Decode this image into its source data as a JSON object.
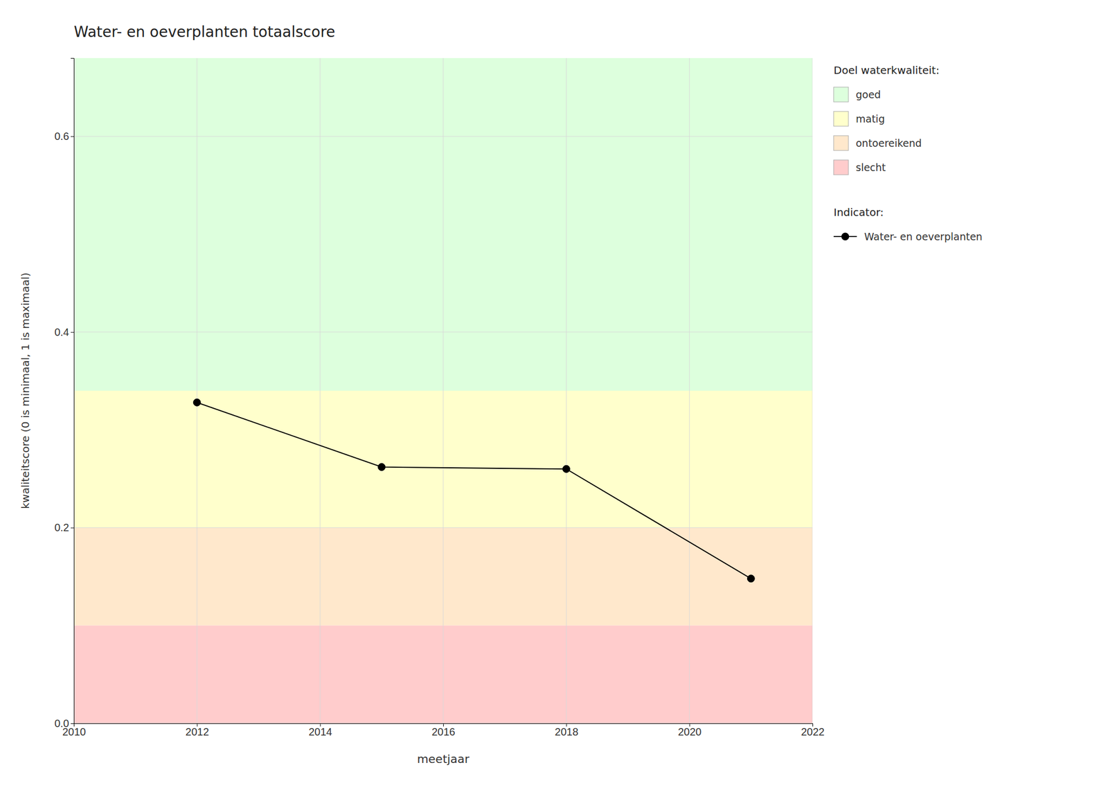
{
  "chart_data": {
    "type": "line",
    "title": "Water- en oeverplanten totaalscore",
    "x_label": "meetjaar",
    "y_label": "kwaliteitscore (0 is minimaal, 1 is maximaal)",
    "x": [
      2012,
      2015,
      2018,
      2021
    ],
    "series": [
      {
        "name": "Water- en oeverplanten",
        "color": "#000000",
        "marker": "circle",
        "line_style": "solid",
        "values": [
          0.328,
          0.262,
          0.26,
          0.148
        ]
      }
    ],
    "xlim": [
      2010,
      2022
    ],
    "ylim": [
      0.0,
      0.68
    ],
    "xticks": [
      2010,
      2012,
      2014,
      2016,
      2018,
      2020,
      2022
    ],
    "yticks": [
      {
        "value": 0.0,
        "label": "0.0"
      },
      0.2,
      0.4,
      0.6
    ],
    "grid": true,
    "legend": "right",
    "legend_title": "Indicator:",
    "zones_title": "Doel waterkwaliteit:",
    "zones": [
      {
        "name": "goed",
        "color": "#DDFFDD",
        "from": 0.34,
        "to": 0.68
      },
      {
        "name": "matig",
        "color": "#FFFFCC",
        "from": 0.2,
        "to": 0.34
      },
      {
        "name": "ontoereikend",
        "color": "#FFE8CC",
        "from": 0.1,
        "to": 0.2
      },
      {
        "name": "slecht",
        "color": "#FFCCCC",
        "from": 0.0,
        "to": 0.1
      }
    ]
  }
}
